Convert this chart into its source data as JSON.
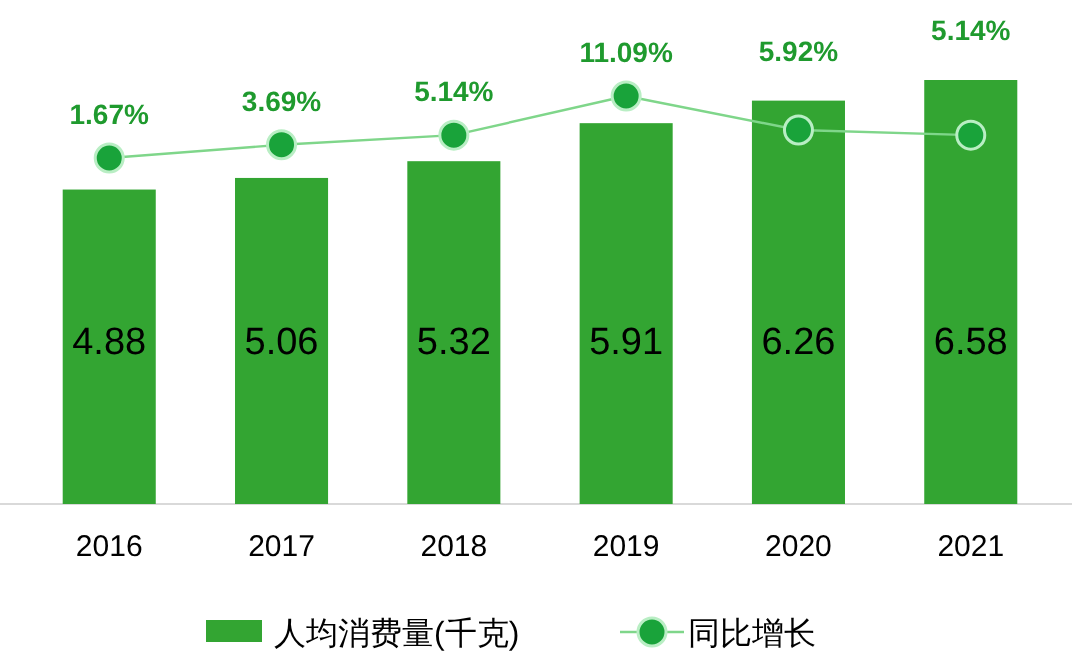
{
  "chart_data": {
    "type": "bar",
    "categories": [
      "2016",
      "2017",
      "2018",
      "2019",
      "2020",
      "2021"
    ],
    "series": [
      {
        "name": "人均消费量(千克)",
        "color": "#33a532",
        "values": [
          4.88,
          5.06,
          5.32,
          5.91,
          6.26,
          6.58
        ]
      },
      {
        "name": "同比增长",
        "type": "line",
        "axis": "y2",
        "color": "#7fd68a",
        "values": [
          1.67,
          3.69,
          5.14,
          11.09,
          5.92,
          5.14
        ],
        "value_labels": [
          "1.67%",
          "3.69%",
          "5.14%",
          "11.09%",
          "5.92%",
          "5.14%"
        ]
      }
    ],
    "data_labels": true,
    "marker": "circle",
    "legend": "bottom",
    "grid": false,
    "tick_labels": "x"
  }
}
